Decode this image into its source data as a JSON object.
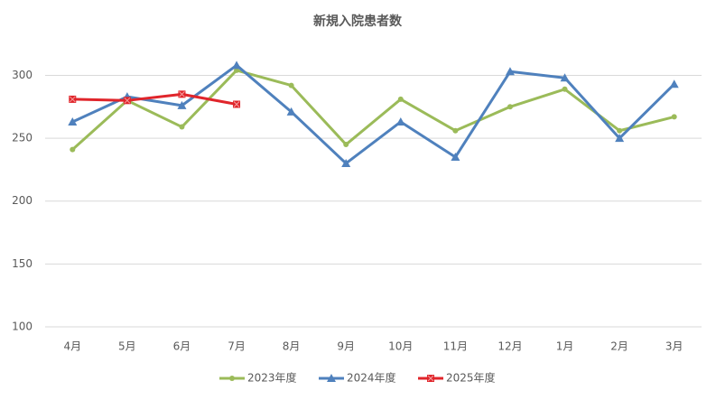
{
  "chart_data": {
    "type": "line",
    "title": "新規入院患者数",
    "categories": [
      "4月",
      "5月",
      "6月",
      "7月",
      "8月",
      "9月",
      "10月",
      "11月",
      "12月",
      "1月",
      "2月",
      "3月"
    ],
    "series": [
      {
        "name": "2023年度",
        "color": "#9bbb59",
        "marker": "circle",
        "values": [
          241,
          280,
          259,
          304,
          292,
          245,
          281,
          256,
          275,
          289,
          256,
          267
        ]
      },
      {
        "name": "2024年度",
        "color": "#4f81bd",
        "marker": "triangle",
        "values": [
          263,
          283,
          276,
          308,
          271,
          230,
          263,
          235,
          303,
          298,
          250,
          293
        ]
      },
      {
        "name": "2025年度",
        "color": "#e0252b",
        "marker": "square",
        "values": [
          281,
          280,
          285,
          277,
          null,
          null,
          null,
          null,
          null,
          null,
          null,
          null
        ]
      }
    ],
    "ylim": [
      100,
      320
    ],
    "yticks": [
      100,
      150,
      200,
      250,
      300
    ],
    "grid": true,
    "legend": "bottom"
  }
}
